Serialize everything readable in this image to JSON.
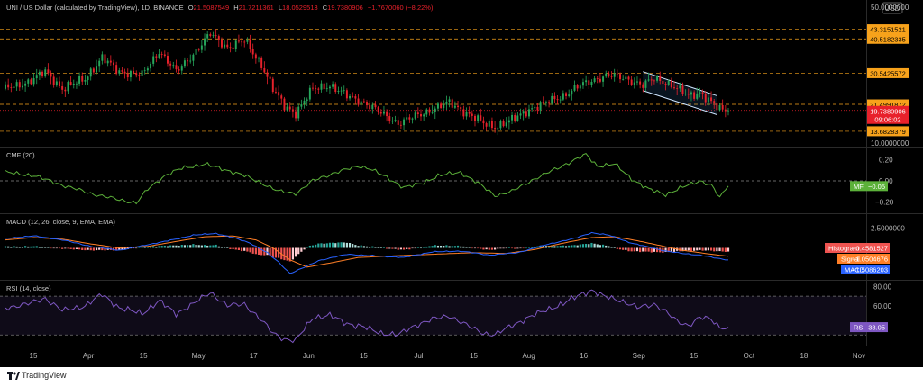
{
  "chart_data": [
    {
      "type": "candlestick",
      "title": "UNI / US Dollar (calculated by TradingView), 1D, BINANCE",
      "ohlc_header": {
        "open_label": "O",
        "open": "21.5087549",
        "high_label": "H",
        "high": "21.7211361",
        "low_label": "L",
        "low": "18.0529513",
        "close_label": "C",
        "close": "19.7380906",
        "change": "−1.7670060 (−8.22%)"
      },
      "currency": "USD",
      "y_axis_ticks": [
        "50.0000000",
        "10.0000000"
      ],
      "ylim": [
        10,
        50
      ],
      "levels": [
        {
          "value": 43.3151521,
          "label": "43.3151521",
          "color": "#f7a21b"
        },
        {
          "value": 40.5182335,
          "label": "40.5182335",
          "color": "#f7a21b"
        },
        {
          "value": 30.5425572,
          "label": "30.5425572",
          "color": "#f7a21b"
        },
        {
          "value": 21.4991872,
          "label": "21.4991872",
          "color": "#f7a21b"
        },
        {
          "value": 13.6828379,
          "label": "13.6828379",
          "color": "#f7a21b"
        }
      ],
      "last_price": {
        "value": 19.7380906,
        "label": "19.7380906",
        "countdown": "09:06:02",
        "color": "#e8212b"
      },
      "x_ticks": [
        "15",
        "Apr",
        "15",
        "May",
        "17",
        "Jun",
        "15",
        "Jul",
        "15",
        "Aug",
        "16",
        "Sep",
        "15",
        "Oct",
        "18",
        "Nov"
      ],
      "series_close_anchors": [
        [
          0,
          26
        ],
        [
          8,
          28
        ],
        [
          14,
          31
        ],
        [
          20,
          26
        ],
        [
          28,
          29
        ],
        [
          34,
          35
        ],
        [
          40,
          31
        ],
        [
          48,
          30
        ],
        [
          54,
          37
        ],
        [
          60,
          31
        ],
        [
          66,
          36
        ],
        [
          72,
          42
        ],
        [
          78,
          38
        ],
        [
          84,
          40
        ],
        [
          90,
          33
        ],
        [
          94,
          26
        ],
        [
          98,
          21
        ],
        [
          102,
          19
        ],
        [
          108,
          26
        ],
        [
          114,
          27
        ],
        [
          120,
          24
        ],
        [
          126,
          22
        ],
        [
          132,
          19
        ],
        [
          138,
          16
        ],
        [
          144,
          18
        ],
        [
          150,
          20
        ],
        [
          156,
          22
        ],
        [
          162,
          19
        ],
        [
          168,
          16
        ],
        [
          172,
          15
        ],
        [
          178,
          17
        ],
        [
          184,
          20
        ],
        [
          190,
          22
        ],
        [
          196,
          24
        ],
        [
          202,
          27
        ],
        [
          208,
          29
        ],
        [
          212,
          30
        ],
        [
          218,
          29
        ],
        [
          224,
          27
        ],
        [
          228,
          29
        ],
        [
          232,
          28
        ],
        [
          236,
          26
        ],
        [
          240,
          24
        ],
        [
          244,
          25
        ],
        [
          248,
          22
        ],
        [
          251,
          20
        ],
        [
          254,
          19.74
        ]
      ],
      "channel": {
        "upper": [
          [
            224,
            31
          ],
          [
            250,
            24
          ]
        ],
        "lower": [
          [
            224,
            25.5
          ],
          [
            250,
            18.5
          ]
        ],
        "color": "#4aa8ff"
      },
      "bull_color": "#26a65b",
      "bear_color": "#e8212b"
    },
    {
      "type": "line",
      "title": "CMF (20)",
      "series": [
        {
          "name": "MF",
          "last_value": "−0.05",
          "color": "#5cb13a"
        }
      ],
      "y_axis_ticks": [
        "0.20",
        "0.00",
        "−0.20"
      ],
      "ylim": [
        -0.3,
        0.3
      ],
      "zero_line": 0,
      "points": [
        [
          0,
          0.08
        ],
        [
          10,
          0.05
        ],
        [
          20,
          -0.04
        ],
        [
          30,
          -0.12
        ],
        [
          40,
          -0.18
        ],
        [
          46,
          -0.21
        ],
        [
          50,
          -0.08
        ],
        [
          56,
          0.05
        ],
        [
          62,
          0.12
        ],
        [
          70,
          0.16
        ],
        [
          78,
          0.1
        ],
        [
          84,
          0.05
        ],
        [
          90,
          -0.02
        ],
        [
          96,
          -0.1
        ],
        [
          102,
          -0.12
        ],
        [
          108,
          0.0
        ],
        [
          116,
          0.08
        ],
        [
          124,
          0.14
        ],
        [
          128,
          0.12
        ],
        [
          134,
          0.03
        ],
        [
          140,
          -0.06
        ],
        [
          146,
          -0.03
        ],
        [
          152,
          0.05
        ],
        [
          160,
          0.08
        ],
        [
          166,
          -0.02
        ],
        [
          172,
          -0.14
        ],
        [
          178,
          -0.1
        ],
        [
          186,
          0.02
        ],
        [
          194,
          0.12
        ],
        [
          200,
          0.2
        ],
        [
          204,
          0.25
        ],
        [
          208,
          0.14
        ],
        [
          214,
          0.16
        ],
        [
          220,
          0.02
        ],
        [
          226,
          -0.08
        ],
        [
          232,
          -0.13
        ],
        [
          238,
          -0.06
        ],
        [
          244,
          0.0
        ],
        [
          248,
          -0.04
        ],
        [
          251,
          -0.16
        ],
        [
          254,
          -0.05
        ]
      ]
    },
    {
      "type": "macd",
      "title": "MACD (12, 26, close, 9, EMA, EMA)",
      "y_axis_ticks": [
        "2.5000000"
      ],
      "ylim": [
        -4,
        4
      ],
      "series": [
        {
          "name": "Histogram",
          "last_value": "−0.4581527",
          "color": "#ef5350"
        },
        {
          "name": "Signal",
          "last_value": "−1.0504676",
          "color": "#ff7f27"
        },
        {
          "name": "MACD",
          "last_value": "−1.5086203",
          "color": "#2962ff"
        }
      ],
      "macd_points": [
        [
          0,
          1.2
        ],
        [
          10,
          1.5
        ],
        [
          20,
          1.0
        ],
        [
          30,
          0.2
        ],
        [
          40,
          -0.3
        ],
        [
          50,
          0.4
        ],
        [
          60,
          1.1
        ],
        [
          66,
          1.6
        ],
        [
          74,
          1.8
        ],
        [
          80,
          1.3
        ],
        [
          86,
          0.6
        ],
        [
          92,
          -0.6
        ],
        [
          96,
          -1.8
        ],
        [
          100,
          -3.2
        ],
        [
          104,
          -2.6
        ],
        [
          110,
          -1.6
        ],
        [
          120,
          -0.8
        ],
        [
          130,
          -1.0
        ],
        [
          140,
          -1.2
        ],
        [
          150,
          -0.5
        ],
        [
          160,
          -0.4
        ],
        [
          170,
          -0.9
        ],
        [
          180,
          -0.6
        ],
        [
          190,
          0.4
        ],
        [
          200,
          1.2
        ],
        [
          206,
          1.9
        ],
        [
          212,
          1.6
        ],
        [
          220,
          0.6
        ],
        [
          226,
          0.1
        ],
        [
          232,
          -0.4
        ],
        [
          238,
          -0.7
        ],
        [
          244,
          -0.9
        ],
        [
          250,
          -1.3
        ],
        [
          254,
          -1.5086203
        ]
      ],
      "signal_points": [
        [
          0,
          1.0
        ],
        [
          10,
          1.3
        ],
        [
          20,
          1.1
        ],
        [
          30,
          0.5
        ],
        [
          40,
          0.0
        ],
        [
          50,
          0.2
        ],
        [
          60,
          0.8
        ],
        [
          70,
          1.4
        ],
        [
          80,
          1.5
        ],
        [
          88,
          1.0
        ],
        [
          94,
          0.0
        ],
        [
          100,
          -1.5
        ],
        [
          106,
          -2.4
        ],
        [
          114,
          -1.9
        ],
        [
          124,
          -1.2
        ],
        [
          136,
          -1.0
        ],
        [
          150,
          -0.8
        ],
        [
          164,
          -0.6
        ],
        [
          176,
          -0.7
        ],
        [
          186,
          -0.2
        ],
        [
          196,
          0.6
        ],
        [
          206,
          1.3
        ],
        [
          214,
          1.4
        ],
        [
          222,
          0.9
        ],
        [
          230,
          0.3
        ],
        [
          238,
          -0.3
        ],
        [
          246,
          -0.7
        ],
        [
          254,
          -1.0504676
        ]
      ]
    },
    {
      "type": "line",
      "title": "RSI (14, close)",
      "series": [
        {
          "name": "RSI",
          "last_value": "38.05",
          "color": "#7e57c2"
        }
      ],
      "y_axis_ticks": [
        "80.00",
        "60.00"
      ],
      "ylim": [
        20,
        85
      ],
      "band": [
        30,
        70
      ],
      "points": [
        [
          0,
          58
        ],
        [
          8,
          62
        ],
        [
          14,
          68
        ],
        [
          20,
          55
        ],
        [
          28,
          60
        ],
        [
          34,
          72
        ],
        [
          40,
          58
        ],
        [
          48,
          52
        ],
        [
          54,
          65
        ],
        [
          60,
          52
        ],
        [
          66,
          62
        ],
        [
          72,
          74
        ],
        [
          78,
          60
        ],
        [
          84,
          62
        ],
        [
          90,
          45
        ],
        [
          94,
          32
        ],
        [
          98,
          26
        ],
        [
          102,
          24
        ],
        [
          108,
          48
        ],
        [
          114,
          50
        ],
        [
          120,
          42
        ],
        [
          126,
          38
        ],
        [
          132,
          32
        ],
        [
          138,
          30
        ],
        [
          144,
          40
        ],
        [
          150,
          46
        ],
        [
          156,
          50
        ],
        [
          162,
          40
        ],
        [
          168,
          32
        ],
        [
          172,
          30
        ],
        [
          178,
          40
        ],
        [
          184,
          48
        ],
        [
          190,
          56
        ],
        [
          196,
          62
        ],
        [
          202,
          72
        ],
        [
          206,
          76
        ],
        [
          210,
          70
        ],
        [
          216,
          66
        ],
        [
          222,
          58
        ],
        [
          228,
          62
        ],
        [
          232,
          54
        ],
        [
          236,
          44
        ],
        [
          240,
          40
        ],
        [
          244,
          48
        ],
        [
          248,
          46
        ],
        [
          251,
          38
        ],
        [
          254,
          38.05
        ]
      ]
    }
  ],
  "footer": {
    "brand": "TradingView"
  }
}
